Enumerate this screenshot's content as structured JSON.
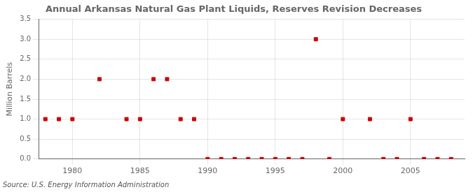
{
  "chart_data": {
    "type": "scatter",
    "title": "Annual Arkansas Natural Gas Plant Liquids, Reserves Revision Decreases",
    "ylabel": "Million Barrels",
    "annotations": [
      "Source: U.S. Energy Information Administration"
    ],
    "x": [
      1978,
      1979,
      1980,
      1982,
      1984,
      1985,
      1986,
      1987,
      1988,
      1989,
      1990,
      1991,
      1992,
      1993,
      1994,
      1995,
      1996,
      1997,
      1998,
      1999,
      2000,
      2002,
      2003,
      2004,
      2005,
      2006,
      2007,
      2008
    ],
    "values": [
      1.0,
      1.0,
      1.0,
      2.0,
      1.0,
      1.0,
      2.0,
      2.0,
      1.0,
      1.0,
      0.0,
      0.0,
      0.0,
      0.0,
      0.0,
      0.0,
      0.0,
      0.0,
      3.0,
      0.0,
      1.0,
      1.0,
      0.0,
      0.0,
      1.0,
      0.0,
      0.0,
      0.0
    ],
    "color": "#cc0000",
    "marker": "square",
    "xlim": [
      1977.5,
      2009
    ],
    "xticks": [
      1980,
      1985,
      1990,
      1995,
      2000,
      2005
    ],
    "ylim": [
      0,
      3.5
    ],
    "yticks": [
      {
        "value": 0.0,
        "label": "0.0"
      },
      0.5,
      {
        "value": 1.0,
        "label": "1.0"
      },
      1.5,
      {
        "value": 2.0,
        "label": "2.0"
      },
      2.5,
      {
        "value": 3.0,
        "label": "3.0"
      },
      3.5
    ],
    "grid": true
  }
}
